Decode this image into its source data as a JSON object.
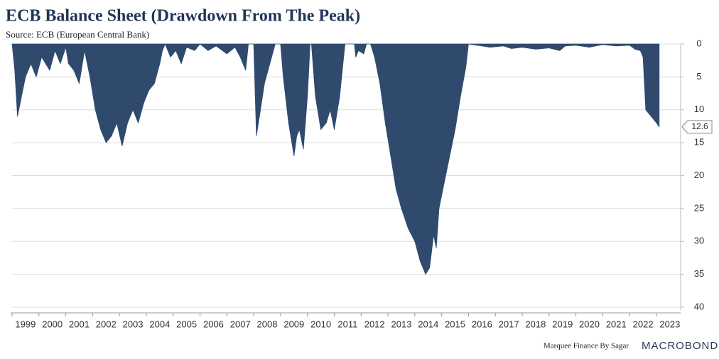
{
  "chart_data": {
    "type": "area",
    "title": "ECB Balance Sheet (Drawdown From The Peak)",
    "subtitle": "Source: ECB (European Central Bank)",
    "credit": "Marquee Finance By Sagar",
    "brand": "MACROBOND",
    "color": "#2f4a6d",
    "inverted_y": true,
    "y_axis_side": "right",
    "grid": true,
    "x": [
      1999.0,
      1999.1,
      1999.2,
      1999.35,
      1999.5,
      1999.7,
      1999.9,
      2000.1,
      2000.4,
      2000.6,
      2000.8,
      2001.0,
      2001.1,
      2001.3,
      2001.5,
      2001.7,
      2001.9,
      2002.1,
      2002.3,
      2002.5,
      2002.7,
      2002.9,
      2003.1,
      2003.3,
      2003.5,
      2003.7,
      2003.9,
      2004.1,
      2004.3,
      2004.5,
      2004.6,
      2004.7,
      2004.9,
      2005.1,
      2005.3,
      2005.5,
      2005.8,
      2006.0,
      2006.3,
      2006.6,
      2007.0,
      2007.3,
      2007.5,
      2007.7,
      2007.8,
      2008.0,
      2008.1,
      2008.25,
      2008.4,
      2008.6,
      2008.8,
      2009.0,
      2009.1,
      2009.3,
      2009.5,
      2009.6,
      2009.7,
      2009.85,
      2010.0,
      2010.1,
      2010.15,
      2010.3,
      2010.5,
      2010.7,
      2010.85,
      2011.0,
      2011.2,
      2011.3,
      2011.4,
      2011.75,
      2011.8,
      2011.9,
      2012.1,
      2012.2,
      2012.35,
      2012.5,
      2012.7,
      2012.9,
      2013.1,
      2013.3,
      2013.5,
      2013.75,
      2014.0,
      2014.2,
      2014.4,
      2014.55,
      2014.7,
      2014.8,
      2014.9,
      2015.1,
      2015.3,
      2015.5,
      2015.7,
      2015.9,
      2016.0,
      2016.5,
      2016.8,
      2017.3,
      2017.6,
      2018.0,
      2018.5,
      2019.0,
      2019.4,
      2019.6,
      2020.0,
      2020.5,
      2021.0,
      2021.5,
      2022.0,
      2022.2,
      2022.4,
      2022.5,
      2022.6,
      2022.8,
      2023.0,
      2023.1
    ],
    "values": [
      0,
      4,
      11,
      8,
      5,
      3,
      5,
      2,
      4,
      1,
      3,
      0.5,
      3,
      4,
      6,
      1,
      5,
      10,
      13,
      15,
      14,
      12,
      15.5,
      12,
      10,
      12,
      9,
      7,
      6,
      3,
      1,
      0,
      2,
      1,
      3,
      0.5,
      1,
      0,
      1,
      0.3,
      1.5,
      0.5,
      2,
      4,
      0,
      0,
      14,
      10,
      6,
      3,
      0,
      0,
      5,
      12,
      17,
      14,
      13,
      16,
      8,
      0,
      0,
      8,
      13,
      12,
      10,
      13,
      8,
      4,
      0,
      0,
      2,
      1,
      1.5,
      0,
      0,
      2,
      6,
      12,
      17,
      22,
      25,
      28,
      30,
      33,
      35,
      34,
      29,
      31,
      25,
      21,
      17,
      13,
      8,
      3.5,
      0,
      0.3,
      0.5,
      0.3,
      0.7,
      0.5,
      0.8,
      0.6,
      1,
      0.3,
      0.2,
      0.5,
      0.1,
      0.3,
      0.2,
      0.8,
      1,
      2,
      10,
      11,
      12,
      12.6
    ],
    "xlim": [
      1999,
      2023.9
    ],
    "xticks": [
      1999,
      2000,
      2001,
      2002,
      2003,
      2004,
      2005,
      2006,
      2007,
      2008,
      2009,
      2010,
      2011,
      2012,
      2013,
      2014,
      2015,
      2016,
      2017,
      2018,
      2019,
      2020,
      2021,
      2022,
      2023
    ],
    "ylim": [
      0,
      40
    ],
    "yticks": [
      0,
      5,
      10,
      15,
      20,
      25,
      30,
      35,
      40
    ]
  }
}
